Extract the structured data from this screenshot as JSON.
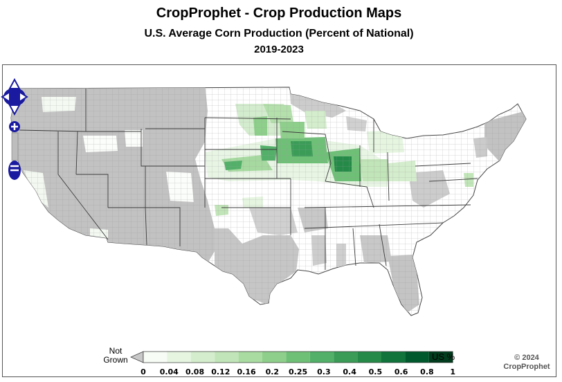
{
  "title": "CropProphet - Crop Production Maps",
  "subtitle": "U.S. Average Corn Production (Percent of National)",
  "period": "2019-2023",
  "legend": {
    "not_grown_line1": "Not",
    "not_grown_line2": "Grown",
    "unit": "US %",
    "ticks": [
      "0",
      "0.04",
      "0.08",
      "0.12",
      "0.16",
      "0.2",
      "0.25",
      "0.3",
      "0.4",
      "0.5",
      "0.6",
      "0.8",
      "1"
    ],
    "not_grown_color": "#c8c8c8",
    "colors": [
      "#f7fcf5",
      "#e5f5e0",
      "#d4edcc",
      "#c1e5b8",
      "#a9dca0",
      "#8ed08b",
      "#6fc077",
      "#52b068",
      "#3a9c57",
      "#258a48",
      "#10743b",
      "#00592c",
      "#003c1d"
    ]
  },
  "map": {
    "region": "Contiguous United States",
    "not_grown_color": "#c0c0c0",
    "county_border_color": "#888888",
    "state_border_color": "#333333"
  },
  "nav_controls": {
    "pan": "pan-arrows",
    "zoom_in": "+",
    "zoom_out": "−"
  },
  "copyright": {
    "line1": "© 2024",
    "line2": "CropProphet"
  }
}
